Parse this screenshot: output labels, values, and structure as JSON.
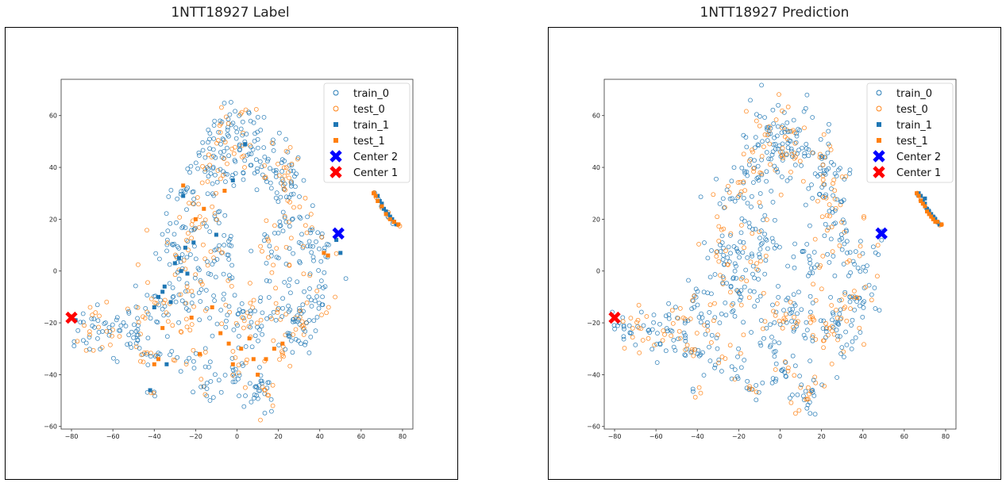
{
  "chart_data": [
    {
      "type": "scatter",
      "title": "1NTT18927 Label",
      "xlabel": "",
      "ylabel": "",
      "xlim": [
        -85,
        85
      ],
      "ylim": [
        -61,
        74
      ],
      "xticks": [
        -80,
        -60,
        -40,
        -20,
        0,
        20,
        40,
        60,
        80
      ],
      "yticks": [
        -60,
        -40,
        -20,
        0,
        20,
        40,
        60
      ],
      "grid": false,
      "legend_position": "top-right",
      "series": [
        {
          "name": "train_0",
          "marker": "open-circle",
          "color": "#1f77b4"
        },
        {
          "name": "test_0",
          "marker": "open-circle",
          "color": "#ff7f0e"
        },
        {
          "name": "train_1",
          "marker": "square",
          "color": "#1f77b4",
          "points": [
            [
              -2,
              35
            ],
            [
              4,
              49
            ],
            [
              -26,
              29
            ],
            [
              -30,
              3
            ],
            [
              -35,
              -6
            ],
            [
              -38,
              -10
            ],
            [
              -40,
              -14
            ],
            [
              -32,
              -12
            ],
            [
              -36,
              -8
            ],
            [
              -25,
              9
            ],
            [
              -28,
              5
            ],
            [
              -24,
              -1
            ],
            [
              -21,
              11
            ],
            [
              -27,
              0
            ],
            [
              -10,
              14
            ],
            [
              68,
              29
            ],
            [
              70,
              26
            ],
            [
              72,
              23
            ],
            [
              74,
              21
            ],
            [
              76,
              19
            ],
            [
              73,
              22
            ],
            [
              69,
              27
            ],
            [
              71,
              24
            ],
            [
              75,
              20
            ],
            [
              77,
              18
            ],
            [
              48,
              12
            ],
            [
              -78,
              -19
            ],
            [
              50,
              7
            ],
            [
              -34,
              -36
            ],
            [
              -42,
              -46
            ]
          ]
        },
        {
          "name": "test_1",
          "marker": "square",
          "color": "#ff7f0e",
          "points": [
            [
              -6,
              31
            ],
            [
              -26,
              33
            ],
            [
              -22,
              -18
            ],
            [
              -38,
              -34
            ],
            [
              -40,
              -36
            ],
            [
              -18,
              -32
            ],
            [
              -4,
              -28
            ],
            [
              2,
              -30
            ],
            [
              6,
              -26
            ],
            [
              -12,
              -14
            ],
            [
              -8,
              -24
            ],
            [
              8,
              -34
            ],
            [
              66,
              30
            ],
            [
              67,
              29
            ],
            [
              68,
              27
            ],
            [
              70,
              25
            ],
            [
              72,
              22
            ],
            [
              74,
              20
            ],
            [
              76,
              19
            ],
            [
              78,
              18
            ],
            [
              42,
              7
            ],
            [
              44,
              6
            ],
            [
              -2,
              -36
            ],
            [
              14,
              -34
            ],
            [
              18,
              -30
            ],
            [
              22,
              -28
            ],
            [
              -20,
              20
            ],
            [
              -16,
              24
            ],
            [
              -36,
              -22
            ],
            [
              10,
              -40
            ]
          ]
        },
        {
          "name": "Center 2",
          "marker": "x",
          "color": "#0000ff",
          "points": [
            [
              49,
              14.5
            ]
          ]
        },
        {
          "name": "Center 1",
          "marker": "x",
          "color": "#ff0000",
          "points": [
            [
              -80,
              -18
            ]
          ]
        }
      ]
    },
    {
      "type": "scatter",
      "title": "1NTT18927 Prediction",
      "xlabel": "",
      "ylabel": "",
      "xlim": [
        -85,
        85
      ],
      "ylim": [
        -61,
        74
      ],
      "xticks": [
        -80,
        -60,
        -40,
        -20,
        0,
        20,
        40,
        60,
        80
      ],
      "yticks": [
        -60,
        -40,
        -20,
        0,
        20,
        40,
        60
      ],
      "grid": false,
      "legend_position": "top-right",
      "series": [
        {
          "name": "train_0",
          "marker": "open-circle",
          "color": "#1f77b4"
        },
        {
          "name": "test_0",
          "marker": "open-circle",
          "color": "#ff7f0e"
        },
        {
          "name": "train_1",
          "marker": "square",
          "color": "#1f77b4",
          "points": [
            [
              68,
              29
            ],
            [
              70,
              26
            ],
            [
              72,
              23
            ],
            [
              74,
              21
            ],
            [
              76,
              19
            ],
            [
              69,
              27
            ],
            [
              71,
              24
            ],
            [
              73,
              22
            ],
            [
              75,
              20
            ],
            [
              77,
              18
            ],
            [
              67,
              30
            ],
            [
              70,
              28
            ]
          ]
        },
        {
          "name": "test_1",
          "marker": "square",
          "color": "#ff7f0e",
          "points": [
            [
              66,
              30
            ],
            [
              67,
              29
            ],
            [
              68,
              27
            ],
            [
              70,
              25
            ],
            [
              72,
              22
            ],
            [
              74,
              20
            ],
            [
              76,
              19
            ],
            [
              78,
              18
            ],
            [
              69,
              26
            ],
            [
              71,
              23
            ],
            [
              73,
              21
            ],
            [
              75,
              19
            ]
          ]
        },
        {
          "name": "Center 2",
          "marker": "x",
          "color": "#0000ff",
          "points": [
            [
              49,
              14.5
            ]
          ]
        },
        {
          "name": "Center 1",
          "marker": "x",
          "color": "#ff0000",
          "points": [
            [
              -80,
              -18
            ]
          ]
        }
      ]
    }
  ]
}
